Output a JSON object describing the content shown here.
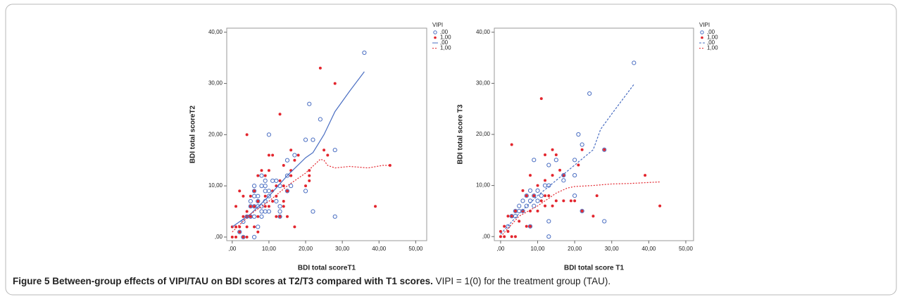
{
  "chart_data": [
    {
      "type": "scatter",
      "xlabel": "BDI total scoreT1",
      "ylabel": "BDI total scoreT2",
      "legend_title": "VIPI",
      "xlim": [
        -1.5,
        53
      ],
      "ylim": [
        -0.7,
        40.8
      ],
      "xticks": [
        {
          "value": 0,
          "label": ",00"
        },
        {
          "value": 10,
          "label": "10,00"
        },
        {
          "value": 20,
          "label": "20,00"
        },
        {
          "value": 30,
          "label": "30,00"
        },
        {
          "value": 40,
          "label": "40,00"
        },
        {
          "value": 50,
          "label": "50,00"
        }
      ],
      "yticks": [
        {
          "value": 0,
          "label": ",00"
        },
        {
          "value": 10,
          "label": "10,00"
        },
        {
          "value": 20,
          "label": "20,00"
        },
        {
          "value": 30,
          "label": "30,00"
        },
        {
          "value": 40,
          "label": "40,00"
        }
      ],
      "series": [
        {
          "name": ",00",
          "color": "#4a6ec2",
          "marker": "circle-open",
          "x": [
            36,
            21,
            24,
            10,
            20,
            22,
            28,
            17,
            15,
            20,
            22,
            28,
            13,
            15,
            8,
            9,
            10,
            8,
            6,
            6,
            7,
            6,
            7,
            9,
            8,
            7,
            6,
            5,
            8,
            9,
            10,
            13,
            13,
            12,
            11,
            5,
            4,
            3,
            2,
            3,
            6,
            7,
            8,
            13,
            15,
            16,
            12,
            9,
            6,
            5,
            10,
            9
          ],
          "values": [
            36,
            26,
            23,
            20,
            19,
            19,
            17,
            16,
            15,
            9,
            5,
            4,
            10,
            12,
            12,
            11,
            9,
            10,
            10,
            9,
            8,
            8,
            7,
            7,
            6,
            6,
            6,
            6,
            5,
            5,
            5,
            6,
            5,
            7,
            11,
            7,
            4,
            3,
            1,
            0,
            0,
            2,
            4,
            4,
            9,
            10,
            11,
            10,
            4,
            4,
            8,
            9
          ]
        },
        {
          "name": "1,00",
          "color": "#e3262e",
          "marker": "dot",
          "x": [
            24,
            28,
            13,
            4,
            25,
            26,
            16,
            18,
            10,
            11,
            17,
            14,
            16,
            21,
            21,
            16,
            10,
            8,
            7,
            9,
            13,
            14,
            12,
            20,
            21,
            15,
            11,
            9,
            6,
            5,
            2,
            3,
            1,
            4,
            5,
            7,
            11,
            12,
            14,
            10,
            9,
            6,
            3,
            4,
            5,
            7,
            12,
            15,
            17,
            1,
            0,
            2,
            4,
            6,
            2,
            0,
            1,
            3,
            4,
            7,
            39,
            43,
            14,
            13
          ],
          "values": [
            33,
            30,
            24,
            20,
            17,
            16,
            17,
            16,
            16,
            16,
            15,
            14,
            13,
            13,
            12,
            12,
            13,
            13,
            12,
            12,
            11,
            10,
            10,
            10,
            11,
            9,
            9,
            8,
            9,
            8,
            9,
            8,
            6,
            5,
            6,
            7,
            7,
            8,
            7,
            6,
            6,
            6,
            4,
            4,
            4,
            4,
            4,
            4,
            2,
            2,
            2,
            2,
            2,
            2,
            1,
            0,
            0,
            0,
            0,
            1,
            6,
            14,
            6,
            4
          ]
        },
        {
          "name": ",00",
          "color": "#4a6ec2",
          "marker": "line",
          "dash": "none",
          "x": [
            0,
            5,
            10,
            15,
            20,
            22,
            25,
            28,
            32,
            36
          ],
          "values": [
            2,
            4.5,
            8,
            12,
            15.5,
            16.5,
            20,
            24.5,
            28.5,
            32.3
          ]
        },
        {
          "name": "1,00",
          "color": "#e3262e",
          "marker": "line",
          "dash": "2,2",
          "x": [
            0,
            5,
            10,
            15,
            20,
            24,
            25,
            26,
            28,
            32,
            37,
            41,
            43
          ],
          "values": [
            1,
            4.5,
            7,
            10,
            12.5,
            15.2,
            15,
            14,
            13.5,
            13.8,
            13.5,
            14,
            14
          ]
        }
      ]
    },
    {
      "type": "scatter",
      "xlabel": "BDI total score T1",
      "ylabel": "BDI total score T3",
      "legend_title": "VIPI",
      "xlim": [
        -1.7,
        52.1
      ],
      "ylim": [
        -0.8,
        40.8
      ],
      "xticks": [
        {
          "value": 0,
          "label": ",00"
        },
        {
          "value": 10,
          "label": "10,00"
        },
        {
          "value": 20,
          "label": "20,00"
        },
        {
          "value": 30,
          "label": "30,00"
        },
        {
          "value": 40,
          "label": "40,00"
        },
        {
          "value": 50,
          "label": "50,00"
        }
      ],
      "yticks": [
        {
          "value": 0,
          "label": ",00"
        },
        {
          "value": 10,
          "label": "10,00"
        },
        {
          "value": 20,
          "label": "20,00"
        },
        {
          "value": 30,
          "label": "30,00"
        },
        {
          "value": 40,
          "label": "40,00"
        }
      ],
      "series": [
        {
          "name": ",00",
          "color": "#4a6ec2",
          "marker": "circle-open",
          "x": [
            36,
            24,
            21,
            22,
            28,
            20,
            15,
            9,
            17,
            20,
            17,
            13,
            13,
            10,
            8,
            9,
            7,
            6,
            8,
            7,
            9,
            5,
            6,
            4,
            5,
            3,
            2,
            8,
            13,
            13,
            20,
            22,
            28,
            11,
            10,
            12,
            4
          ],
          "values": [
            34,
            28,
            20,
            18,
            17,
            15,
            15,
            15,
            12,
            12,
            11,
            14,
            10,
            9,
            9,
            8,
            8,
            7,
            7,
            6,
            6,
            5,
            5,
            5,
            6,
            4,
            2,
            2,
            3,
            0,
            8,
            5,
            3,
            8,
            7,
            10,
            4
          ]
        },
        {
          "name": "1,00",
          "color": "#e3262e",
          "marker": "dot",
          "x": [
            11,
            3,
            14,
            15,
            12,
            16,
            21,
            22,
            28,
            14,
            17,
            12,
            8,
            10,
            6,
            7,
            9,
            11,
            12,
            13,
            15,
            17,
            19,
            20,
            26,
            39,
            43,
            22,
            25,
            8,
            10,
            12,
            14,
            6,
            4,
            3,
            5,
            2,
            1,
            2,
            0,
            0,
            3,
            4,
            7,
            8,
            1
          ],
          "values": [
            27,
            18,
            17,
            16,
            16,
            13,
            14,
            17,
            17,
            12,
            12,
            11,
            12,
            10,
            9,
            8,
            8,
            7,
            8,
            8,
            7,
            7,
            7,
            7,
            8,
            12,
            6,
            5,
            4,
            5,
            5,
            6,
            6,
            5,
            5,
            4,
            3,
            4,
            2,
            1,
            1,
            0,
            0,
            0,
            2,
            2,
            0
          ]
        },
        {
          "name": ",00",
          "color": "#4a6ec2",
          "marker": "line",
          "dash": "3,2",
          "x": [
            0,
            5,
            10,
            15,
            20,
            25,
            26,
            27,
            30,
            36
          ],
          "values": [
            0.5,
            4.5,
            8,
            11,
            14,
            17,
            19,
            21,
            24,
            29.8
          ]
        },
        {
          "name": "1,00",
          "color": "#e3262e",
          "marker": "line",
          "dash": "2,2",
          "x": [
            0,
            5,
            10,
            15,
            18,
            20,
            25,
            30,
            35,
            43
          ],
          "values": [
            0,
            4,
            6,
            8.5,
            9.5,
            9.8,
            10,
            10.3,
            10.4,
            10.7
          ]
        }
      ]
    }
  ],
  "caption": {
    "bold": "Figure 5 Between-group effects of VIPI/TAU on BDI scores at T2/T3 compared with T1 scores.",
    "text": "VIPI = 1(0) for the treatment group (TAU)."
  }
}
